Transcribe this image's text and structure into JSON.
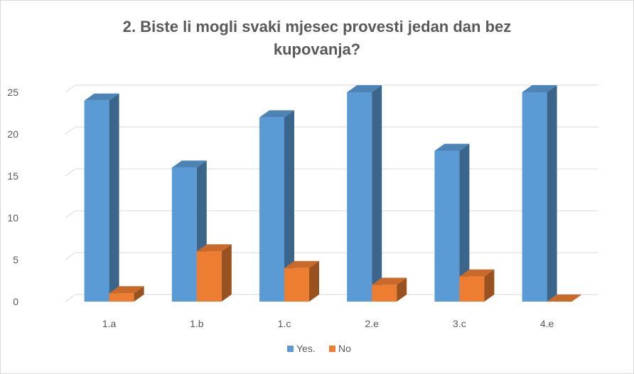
{
  "chart_data": {
    "type": "bar",
    "title_line1": "2. Biste li mogli svaki mjesec provesti jedan dan bez",
    "title_line2": "kupovanja?",
    "categories": [
      "1.a",
      "1.b",
      "1.c",
      "2.e",
      "3.c",
      "4.e"
    ],
    "series": [
      {
        "name": "Yes.",
        "values": [
          24,
          16,
          22,
          25,
          18,
          25
        ],
        "color": "#5b9bd5"
      },
      {
        "name": "No",
        "values": [
          1,
          6,
          4,
          2,
          3,
          0
        ],
        "color": "#ed7d31"
      }
    ],
    "yticks": [
      "0",
      "5",
      "10",
      "15",
      "20",
      "25"
    ],
    "ylim": [
      0,
      25
    ],
    "grid": true,
    "legend_position": "bottom",
    "style": "3d-column"
  }
}
